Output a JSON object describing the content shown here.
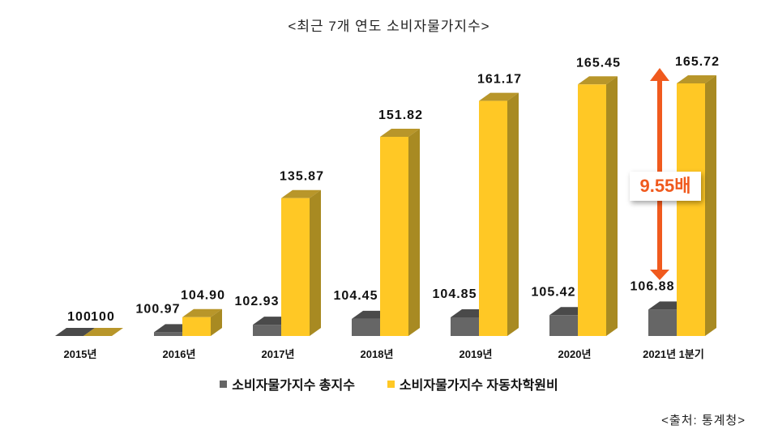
{
  "chart_data": {
    "type": "bar",
    "title": "<최근 7개 연도 소비자물가지수>",
    "categories": [
      "2015년",
      "2016년",
      "2017년",
      "2018년",
      "2019년",
      "2020년",
      "2021년 1분기"
    ],
    "series": [
      {
        "name": "소비자물가지수 총지수",
        "color": "#666666",
        "values": [
          100,
          100.97,
          102.93,
          104.45,
          104.85,
          105.42,
          106.88
        ],
        "labels": [
          "100",
          "100.97",
          "102.93",
          "104.45",
          "104.85",
          "105.42",
          "106.88"
        ]
      },
      {
        "name": "소비자물가지수 자동차학원비",
        "color": "#ffc825",
        "values": [
          100,
          104.9,
          135.87,
          151.82,
          161.17,
          165.45,
          165.72
        ],
        "labels": [
          "100",
          "104.90",
          "135.87",
          "151.82",
          "161.17",
          "165.45",
          "165.72"
        ]
      }
    ],
    "ylim": [
      100,
      166
    ],
    "annotation": {
      "text": "9.55배",
      "color": "#f05a1e"
    },
    "source": "<출처: 통계청>"
  }
}
